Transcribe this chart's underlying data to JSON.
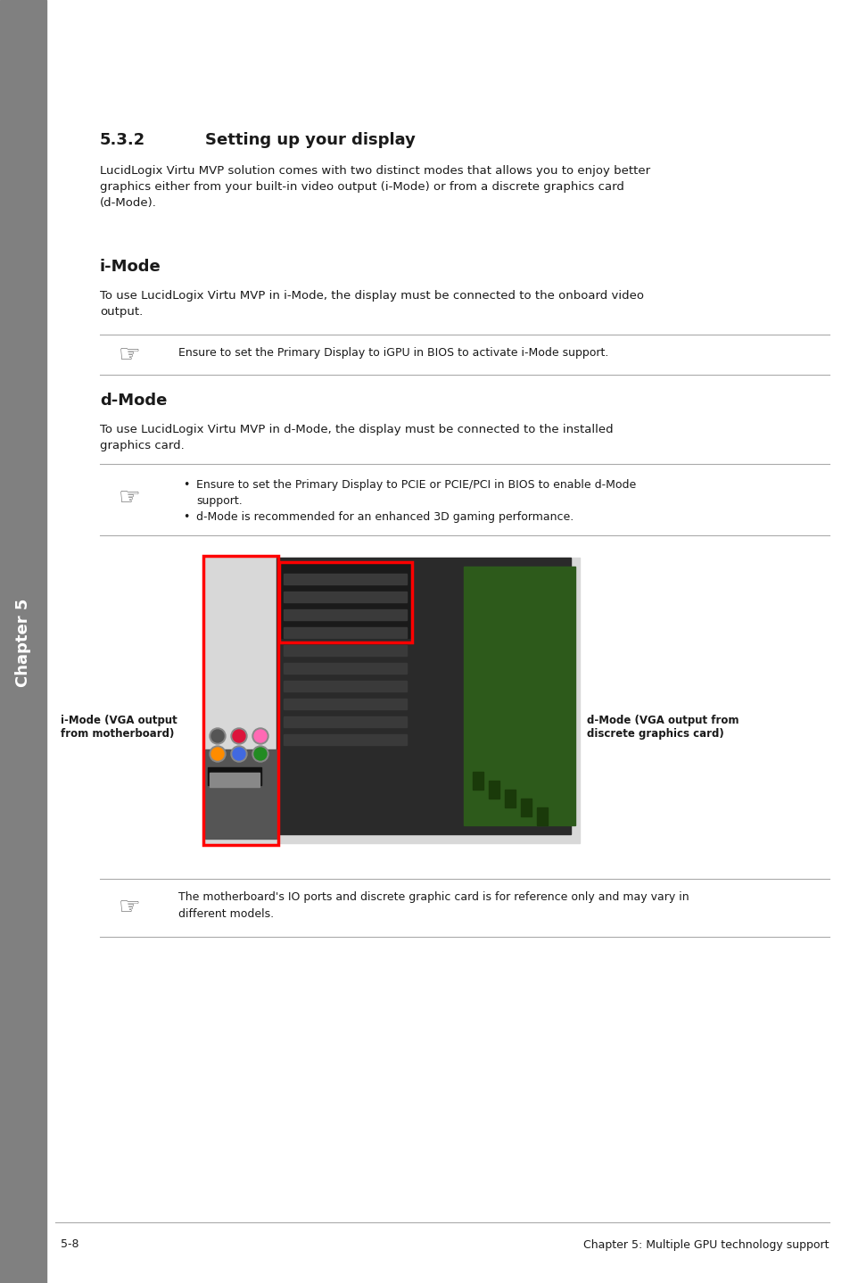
{
  "bg_color": "#ffffff",
  "sidebar_color": "#808080",
  "sidebar_text": "Chapter 5",
  "section_number": "5.3.2",
  "section_title": "Setting up your display",
  "intro_text": "LucidLogix Virtu MVP solution comes with two distinct modes that allows you to enjoy better\ngraphics either from your built-in video output (i-Mode) or from a discrete graphics card\n(d-Mode).",
  "imode_title": "i-Mode",
  "imode_body": "To use LucidLogix Virtu MVP in i-Mode, the display must be connected to the onboard video\noutput.",
  "imode_note": "Ensure to set the Primary Display to iGPU in BIOS to activate i-Mode support.",
  "dmode_title": "d-Mode",
  "dmode_body": "To use LucidLogix Virtu MVP in d-Mode, the display must be connected to the installed\ngraphics card.",
  "dmode_bullet1": "Ensure to set the Primary Display to PCIE or PCIE/PCI in BIOS to enable d-Mode\nsupport.",
  "dmode_bullet2": "d-Mode is recommended for an enhanced 3D gaming performance.",
  "bottom_note": "The motherboard's IO ports and discrete graphic card is for reference only and may vary in\ndifferent models.",
  "footer_left": "5-8",
  "footer_right": "Chapter 5: Multiple GPU technology support",
  "imode_label": "i-Mode (VGA output\nfrom motherboard)",
  "dmode_label": "d-Mode (VGA output from\ndiscrete graphics card)"
}
